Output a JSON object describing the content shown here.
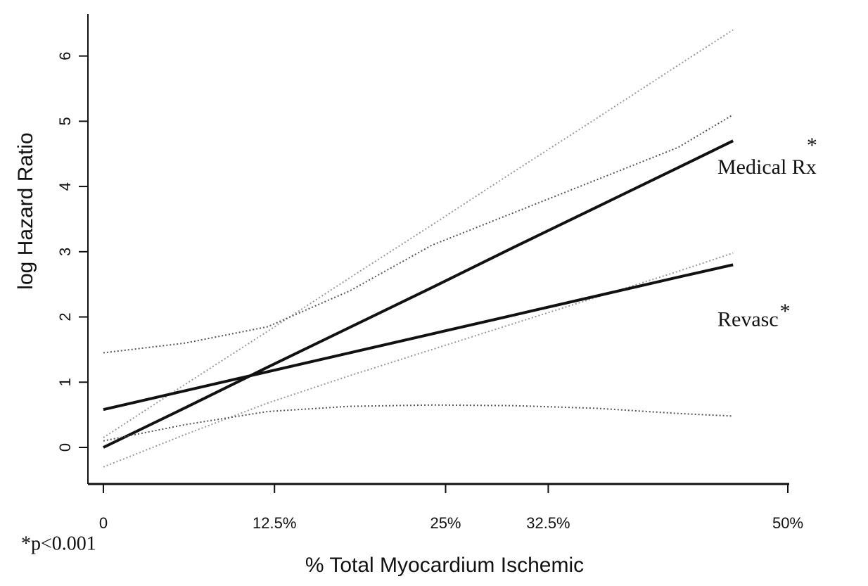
{
  "chart_data": {
    "type": "line",
    "xlabel": "% Total Myocardium Ischemic",
    "ylabel": "log Hazard Ratio",
    "x": [
      0,
      6,
      12,
      18,
      24,
      30,
      36,
      42,
      46
    ],
    "xlim": [
      -1,
      50
    ],
    "xticks": [
      0,
      {
        "value": 12.5,
        "label": "12.5%"
      },
      {
        "value": 25,
        "label": "25%"
      },
      {
        "value": 32.5,
        "label": "32.5%"
      },
      {
        "value": 50,
        "label": "50%"
      }
    ],
    "ylim": [
      -0.55,
      6.6
    ],
    "yticks": [
      0,
      1,
      2,
      3,
      4,
      5,
      6
    ],
    "grid": false,
    "series": [
      {
        "name": "Medical Rx",
        "marker": "*",
        "color": "#111111",
        "ci_color": "#9a9a9a",
        "values": [
          0,
          0.61,
          1.23,
          1.84,
          2.45,
          3.07,
          3.68,
          4.29,
          4.7
        ],
        "upper": [
          0.15,
          0.97,
          1.78,
          2.6,
          3.41,
          4.23,
          5.04,
          5.86,
          6.4
        ],
        "lower": [
          -0.3,
          0.2,
          0.68,
          1.1,
          1.5,
          1.9,
          2.3,
          2.7,
          2.98
        ]
      },
      {
        "name": "Revasc",
        "marker": "*",
        "color": "#111111",
        "ci_color": "#555555",
        "values": [
          0.58,
          0.87,
          1.16,
          1.45,
          1.74,
          2.03,
          2.32,
          2.61,
          2.8
        ],
        "upper": [
          1.45,
          1.6,
          1.85,
          2.4,
          3.1,
          3.6,
          4.1,
          4.6,
          5.1
        ],
        "lower": [
          0.1,
          0.35,
          0.55,
          0.63,
          0.65,
          0.64,
          0.6,
          0.52,
          0.48
        ]
      }
    ],
    "footnote": "*p<0.001"
  }
}
